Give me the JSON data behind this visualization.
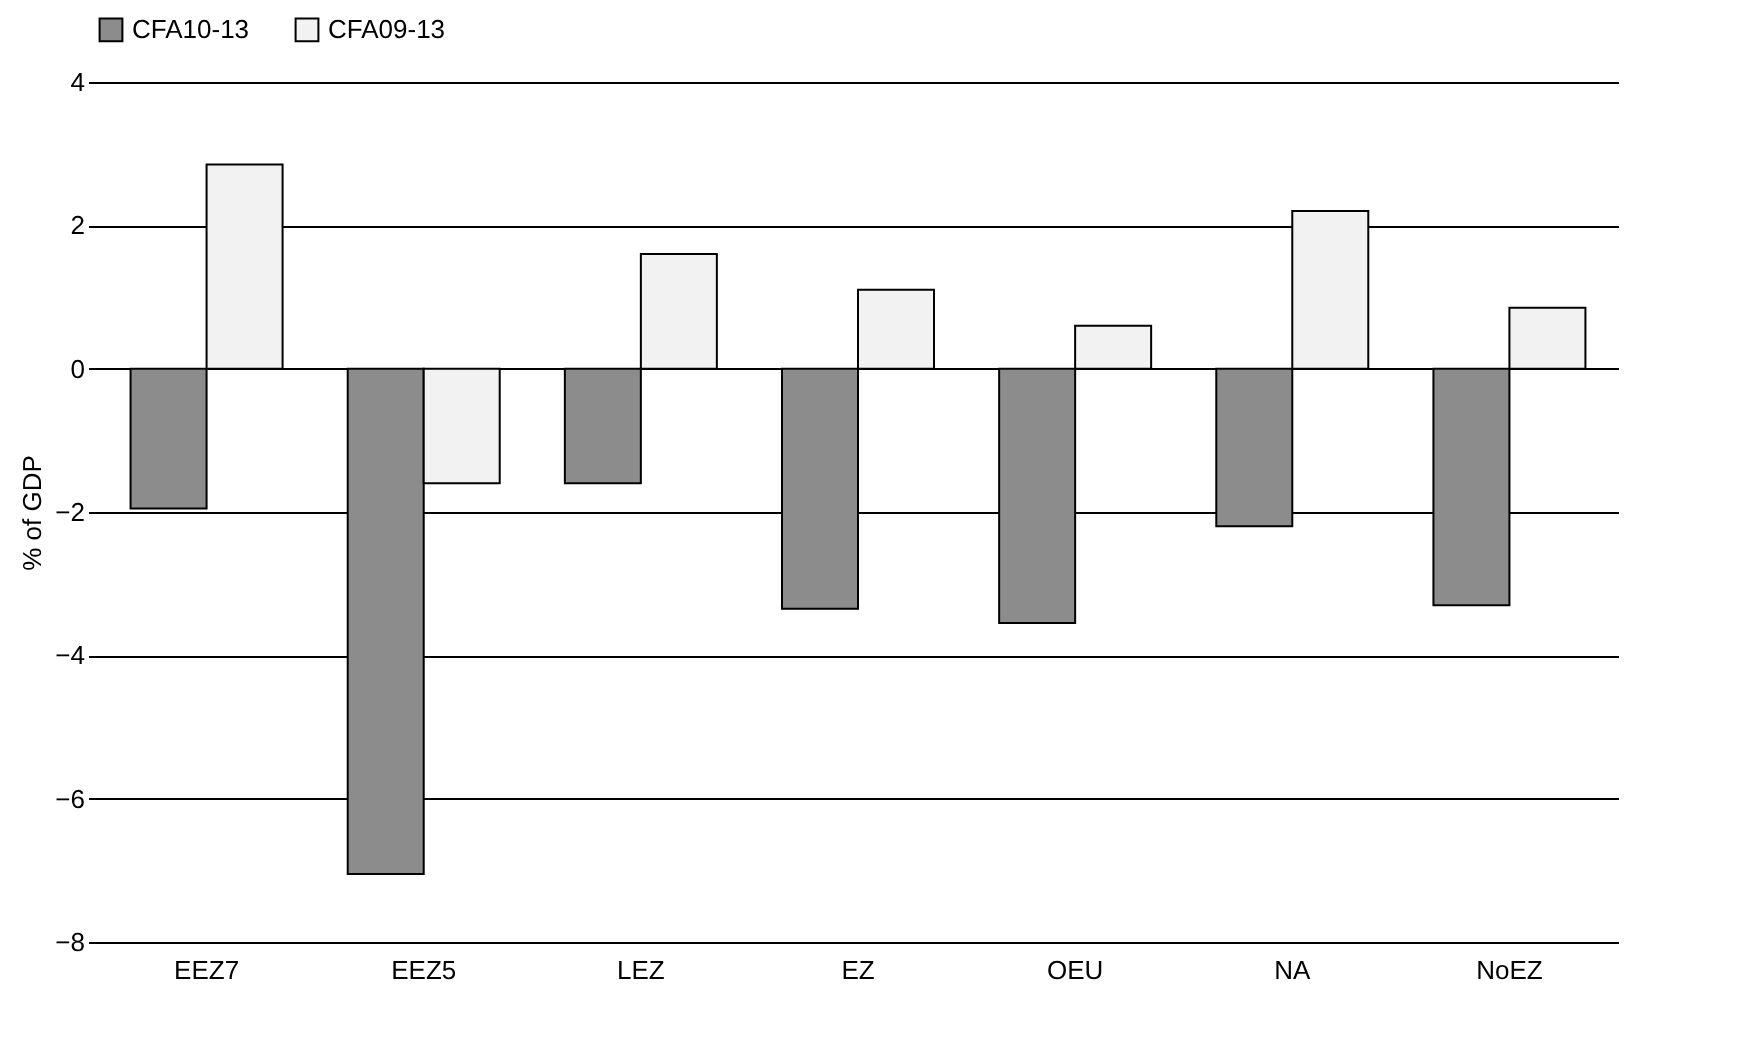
{
  "chart_data": {
    "type": "bar",
    "ylabel": "% of GDP",
    "categories": [
      "EEZ7",
      "EEZ5",
      "LEZ",
      "EZ",
      "OEU",
      "NA",
      "NoEZ"
    ],
    "series": [
      {
        "name": "CFA10-13",
        "color": "#8c8c8c",
        "values": [
          -1.95,
          -7.05,
          -1.6,
          -3.35,
          -3.55,
          -2.2,
          -3.3
        ]
      },
      {
        "name": "CFA09-13",
        "color": "#f2f2f2",
        "values": [
          2.85,
          -1.6,
          1.6,
          1.1,
          0.6,
          2.2,
          0.85
        ]
      }
    ],
    "ylim": [
      -8,
      4
    ],
    "yticks": [
      -8,
      -6,
      -4,
      -2,
      0,
      2,
      4
    ],
    "grid": "y",
    "legend": "top"
  }
}
